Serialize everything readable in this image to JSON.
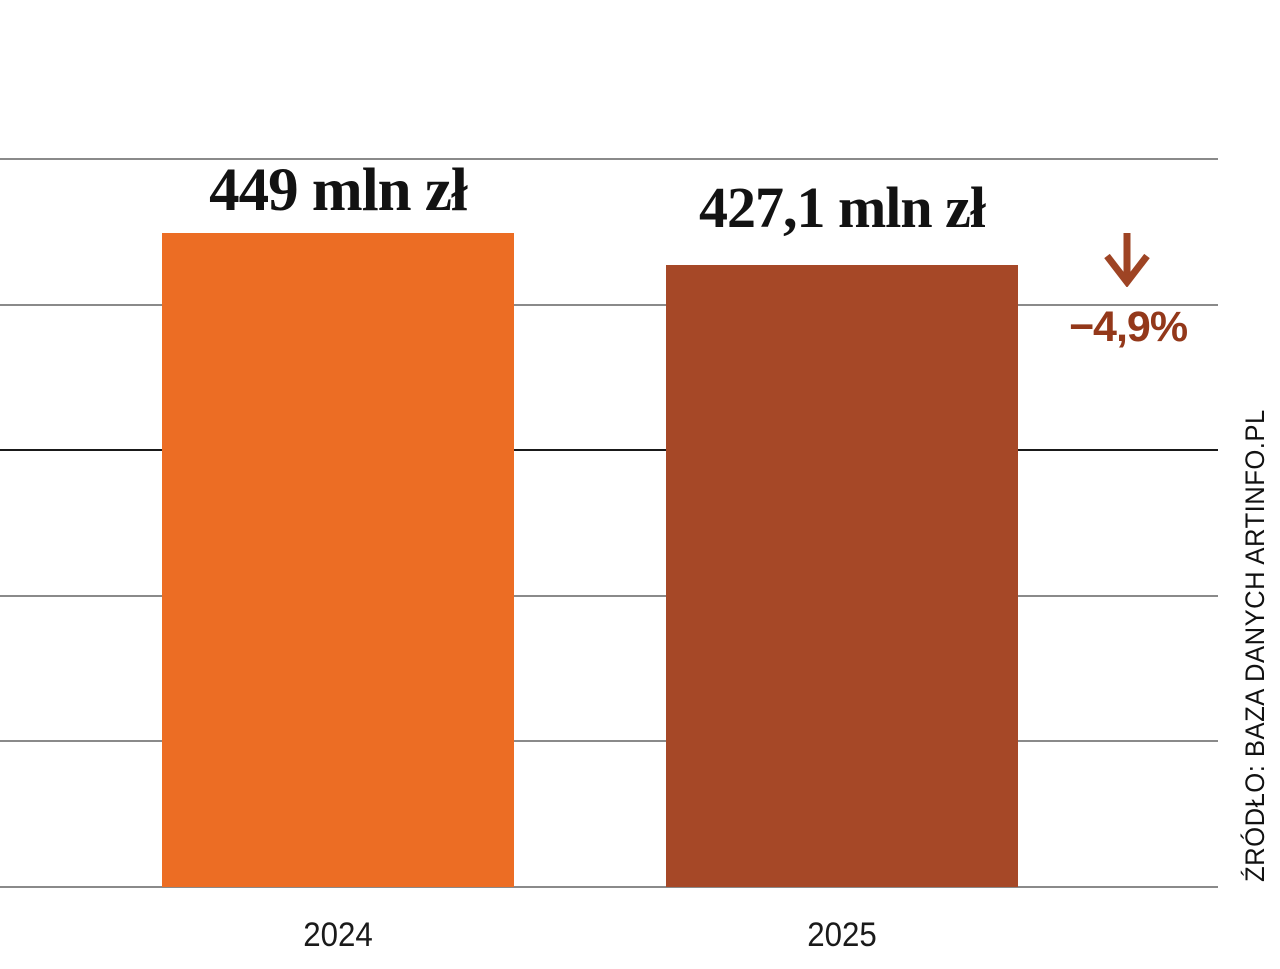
{
  "chart_data": {
    "type": "bar",
    "title": "",
    "xlabel": "",
    "ylabel": "",
    "categories": [
      "2024",
      "2025"
    ],
    "values": [
      449,
      427.1
    ],
    "value_labels": [
      "449 mln zł",
      "427,1 mln zł"
    ],
    "unit": "mln zł",
    "ylim": [
      0,
      500
    ],
    "gridline_values": [
      0,
      100,
      200,
      300,
      400,
      500
    ],
    "emphasized_gridline_value": 300,
    "grid": true,
    "legend": "none",
    "change": {
      "label": "−4,9%",
      "direction": "down",
      "icon": "arrow-down-icon"
    },
    "source": "ŹRÓDŁO: BAZA DANYCH ARTINFO.PL",
    "colors": {
      "bar_2024": "#EC6D24",
      "bar_2025": "#A64827",
      "change_text": "#93381A",
      "arrow": "#9E4424",
      "gridline": "#8A8A8A",
      "gridline_emphasis": "#1A1A1A",
      "text": "#121212",
      "background": "#FFFFFF"
    }
  }
}
